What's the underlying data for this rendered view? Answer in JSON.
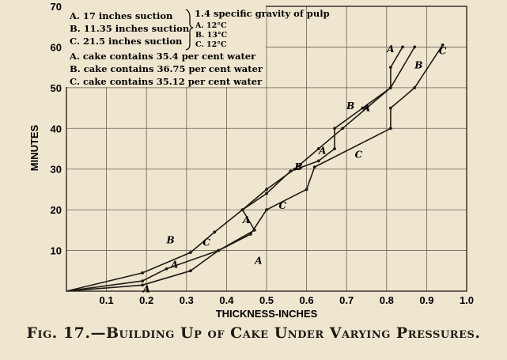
{
  "chart_data": {
    "type": "line",
    "title": "Fig. 17.—Building Up of Cake Under Varying Pressures.",
    "xlabel": "THICKNESS-INCHES",
    "ylabel": "MINUTES",
    "xlim": [
      0,
      1.0
    ],
    "ylim": [
      0,
      70
    ],
    "x_ticks": [
      "0.1",
      "0.2",
      "0.3",
      "0.4",
      "0.5",
      "0.6",
      "0.7",
      "0.8",
      "0.9",
      "1.0"
    ],
    "y_ticks": [
      "10",
      "20",
      "30",
      "40",
      "50",
      "60",
      "70"
    ],
    "grid": true,
    "legend_lines": [
      "A. 17 inches suction",
      "B. 11.35 inches suction",
      "C. 21.5 inches suction",
      "A. cake contains 35.4 per cent water",
      "B. cake contains 36.75 per cent water",
      "C. cake contains 35.12 per cent water"
    ],
    "legend_right": {
      "gravity": "1.4 specific gravity of pulp",
      "temps": [
        "A. 12°C",
        "B. 13°C",
        "C. 12°C"
      ]
    },
    "series": [
      {
        "name": "A",
        "x": [
          0,
          0.19,
          0.25,
          0.38,
          0.47,
          0.44,
          0.5,
          0.56,
          0.63,
          0.67,
          0.67,
          0.74,
          0.81,
          0.81,
          0.84
        ],
        "y": [
          0,
          2.5,
          5.5,
          10,
          15,
          20,
          24,
          29.5,
          32,
          35,
          40,
          45,
          50,
          55,
          60
        ]
      },
      {
        "name": "B",
        "x": [
          0,
          0.19,
          0.31,
          0.37,
          0.44,
          0.5,
          0.57,
          0.63,
          0.69,
          0.75,
          0.81,
          0.87
        ],
        "y": [
          0,
          4.5,
          9.5,
          14.5,
          20,
          25,
          30,
          35,
          40,
          45,
          50,
          60
        ]
      },
      {
        "name": "C",
        "x": [
          0,
          0.19,
          0.31,
          0.38,
          0.46,
          0.5,
          0.6,
          0.62,
          0.81,
          0.81,
          0.87,
          0.94
        ],
        "y": [
          0,
          1.5,
          5,
          10,
          14,
          20,
          25,
          30.5,
          40,
          45,
          50,
          60.5
        ]
      }
    ],
    "annotations": [
      {
        "text": "A",
        "x": 0.2,
        "y": 0.5
      },
      {
        "text": "A",
        "x": 0.27,
        "y": 6.5
      },
      {
        "text": "B",
        "x": 0.26,
        "y": 12.5
      },
      {
        "text": "C",
        "x": 0.35,
        "y": 12
      },
      {
        "text": "A",
        "x": 0.48,
        "y": 7.5
      },
      {
        "text": "A",
        "x": 0.45,
        "y": 17.5
      },
      {
        "text": "C",
        "x": 0.54,
        "y": 21
      },
      {
        "text": "C",
        "x": 0.73,
        "y": 33.5
      },
      {
        "text": "B",
        "x": 0.58,
        "y": 30.5
      },
      {
        "text": "A",
        "x": 0.64,
        "y": 34.5
      },
      {
        "text": "B",
        "x": 0.71,
        "y": 45.5
      },
      {
        "text": "A",
        "x": 0.75,
        "y": 45
      },
      {
        "text": "A",
        "x": 0.81,
        "y": 59.5
      },
      {
        "text": "B",
        "x": 0.88,
        "y": 55.5
      },
      {
        "text": "C",
        "x": 0.94,
        "y": 59
      }
    ]
  }
}
